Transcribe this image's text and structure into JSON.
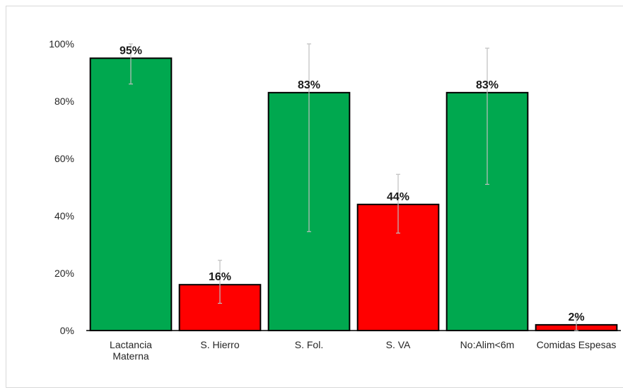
{
  "chart_data": {
    "type": "bar",
    "categories": [
      [
        "Lactancia",
        "Materna"
      ],
      [
        "S. Hierro"
      ],
      [
        "S. Fol."
      ],
      [
        "S. VA"
      ],
      [
        "No:Alim<6m"
      ],
      [
        "Comidas Espesas"
      ]
    ],
    "values": [
      95,
      16,
      83,
      44,
      83,
      2
    ],
    "data_labels": [
      "95%",
      "16%",
      "83%",
      "44%",
      "83%",
      "2%"
    ],
    "error_low": [
      86,
      9.5,
      34.5,
      34,
      51,
      0
    ],
    "error_high": [
      100,
      24.5,
      100,
      54.5,
      98.5,
      4.5
    ],
    "bar_colors": [
      "#00a84f",
      "#ff0000",
      "#00a84f",
      "#ff0000",
      "#00a84f",
      "#ff0000"
    ],
    "bar_outline_color": "#000000",
    "error_bar_color": "#bfbfbf",
    "ylim": [
      0,
      100
    ],
    "yticks": [
      0,
      20,
      40,
      60,
      80,
      100
    ],
    "ytick_labels": [
      "0%",
      "20%",
      "40%",
      "60%",
      "80%",
      "100%"
    ],
    "grid": false,
    "legend": false
  }
}
